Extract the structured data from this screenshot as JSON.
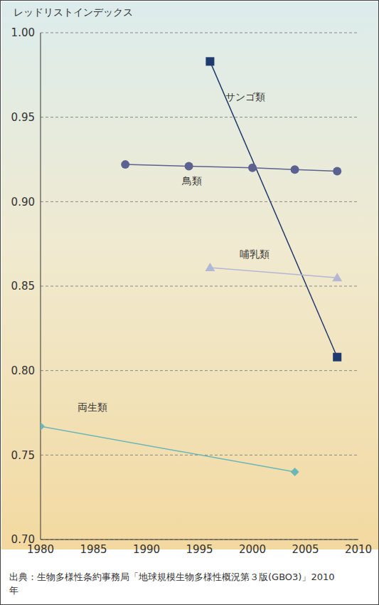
{
  "chart_data": {
    "type": "line",
    "title": "レッドリストインデックス",
    "source": "出典：生物多様性条約事務局「地球規模生物多様性概況第３版(GBO3)」2010 年",
    "xlim": [
      1980,
      2010
    ],
    "xticks": [
      1980,
      1985,
      1990,
      1995,
      2000,
      2005,
      2010
    ],
    "ylim": [
      0.7,
      1
    ],
    "yticks": [
      {
        "value": 0.7,
        "label": "0.70"
      },
      0.75,
      {
        "value": 0.8,
        "label": "0.80"
      },
      0.85,
      {
        "value": 0.9,
        "label": "0.90"
      },
      0.95,
      {
        "value": 1,
        "label": "1.00"
      }
    ],
    "grid": true,
    "series": [
      {
        "name": "サンゴ類",
        "color": "#1f3a6e",
        "marker": "square",
        "x": [
          1996,
          2008
        ],
        "values": [
          0.983,
          0.808
        ]
      },
      {
        "name": "鳥類",
        "color": "#5c6290",
        "marker": "circle",
        "x": [
          1988,
          1994,
          2000,
          2004,
          2008
        ],
        "values": [
          0.922,
          0.921,
          0.92,
          0.919,
          0.918
        ]
      },
      {
        "name": "哺乳類",
        "color": "#b4b6d6",
        "marker": "triangle",
        "x": [
          1996,
          2008
        ],
        "values": [
          0.861,
          0.855
        ]
      },
      {
        "name": "両生類",
        "color": "#6ab7b8",
        "marker": "diamond",
        "x": [
          1980,
          2004
        ],
        "values": [
          0.767,
          0.74
        ]
      }
    ]
  }
}
